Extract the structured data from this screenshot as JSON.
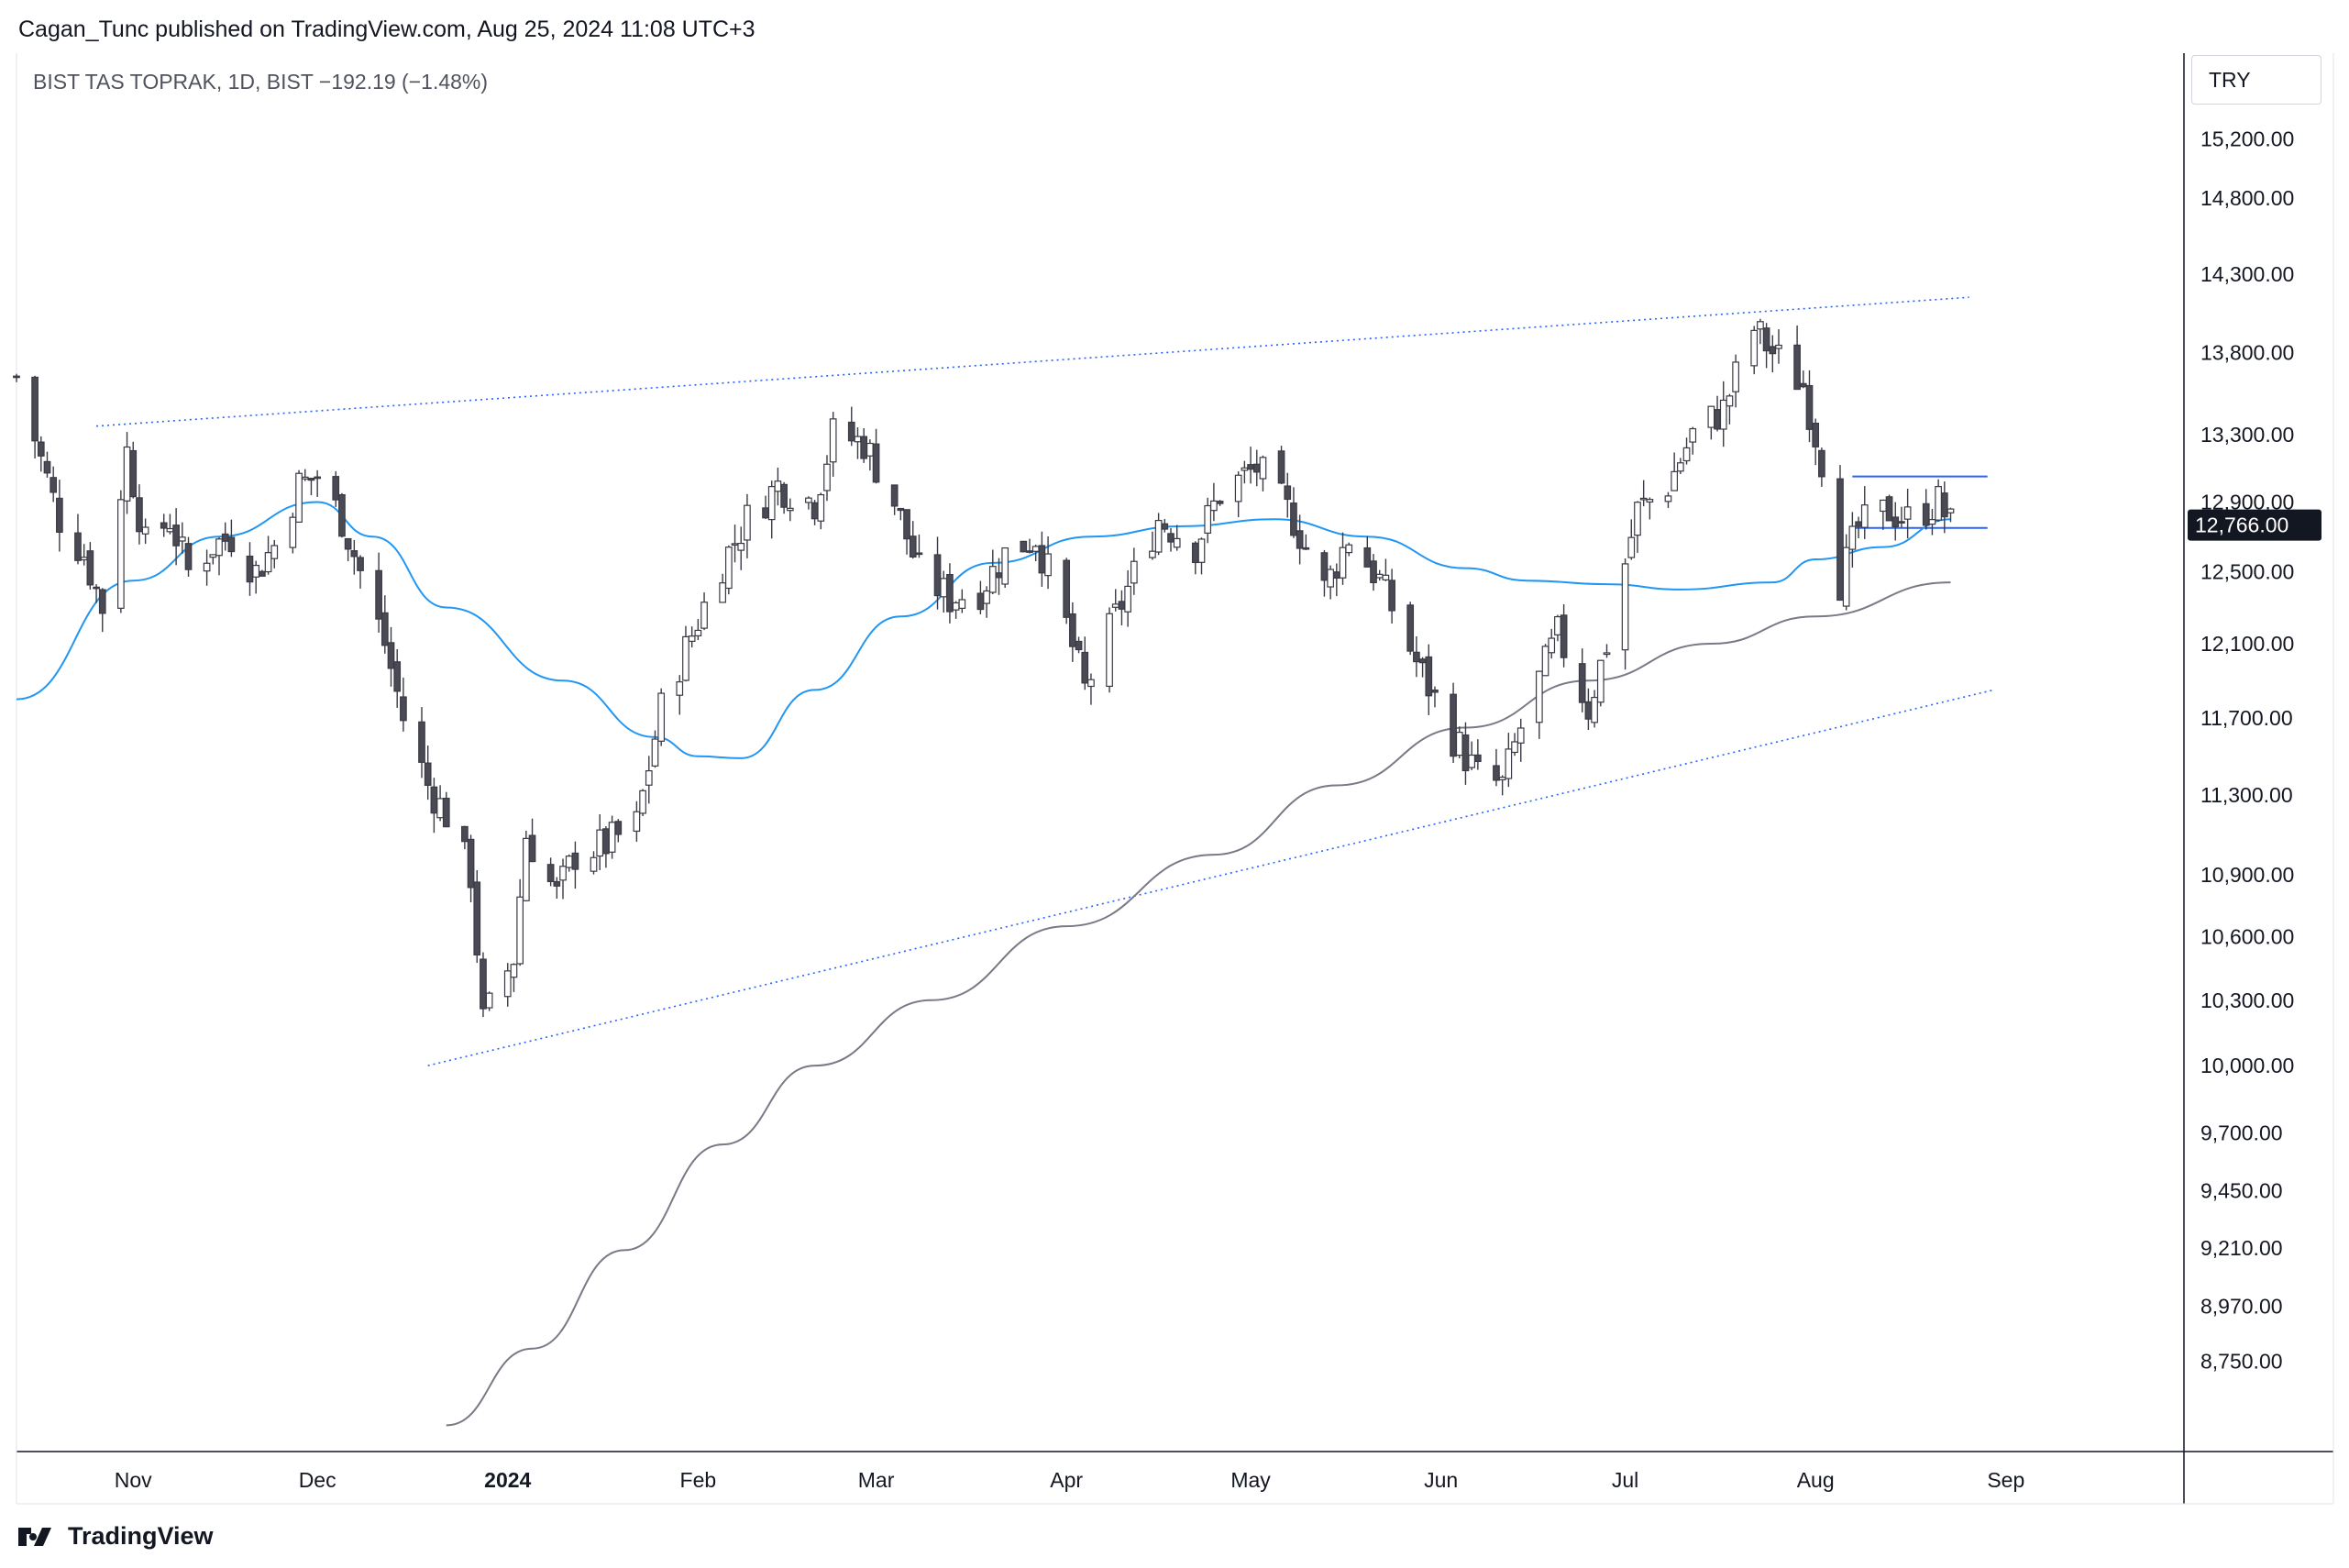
{
  "header": {
    "published_line": "Cagan_Tunc published on TradingView.com, Aug 25, 2024 11:08 UTC+3",
    "symbol_line": "BIST TAS TOPRAK, 1D, BIST  −192.19 (−1.48%)"
  },
  "price_scale": {
    "currency": "TRY",
    "last_price_label": "12,766.00",
    "last_price_color": "#131722"
  },
  "footer": {
    "brand": "TradingView",
    "logo_icon": "tradingview-logo-icon"
  },
  "colors": {
    "up_body": "#ffffff",
    "down_body": "#4a4a55",
    "wick": "#3a3a45",
    "ma_fast": "#2196f3",
    "ma_slow": "#787b86",
    "trendline": "#2962ff",
    "grid_border": "#131722"
  },
  "chart_data": {
    "type": "candlestick",
    "symbol": "BIST TAS TOPRAK",
    "interval": "1D",
    "exchange": "BIST",
    "change": "−192.19 (−1.48%)",
    "last_price": 12766.0,
    "y_scale": "log",
    "ylim": [
      8400,
      15800
    ],
    "y_ticks": [
      15200,
      14800,
      14300,
      13800,
      13300,
      12900,
      12500,
      12100,
      11700,
      11300,
      10900,
      10600,
      10300,
      10000,
      9700,
      9450,
      9210,
      8970,
      8750
    ],
    "y_tick_labels": [
      "15,200.00",
      "14,800.00",
      "14,300.00",
      "13,800.00",
      "13,300.00",
      "12,900.00",
      "12,500.00",
      "12,100.00",
      "11,700.00",
      "11,300.00",
      "10,900.00",
      "10,600.00",
      "10,300.00",
      "10,000.00",
      "9,700.00",
      "9,450.00",
      "9,210.00",
      "8,970.00",
      "8,750.00"
    ],
    "xlim": [
      "2023-10-13",
      "2024-09-30"
    ],
    "x_ticks": [
      {
        "date": "2023-11-01",
        "label": "Nov"
      },
      {
        "date": "2023-12-01",
        "label": "Dec"
      },
      {
        "date": "2024-01-01",
        "label": "2024"
      },
      {
        "date": "2024-02-01",
        "label": "Feb"
      },
      {
        "date": "2024-03-01",
        "label": "Mar"
      },
      {
        "date": "2024-04-01",
        "label": "Apr"
      },
      {
        "date": "2024-05-01",
        "label": "May"
      },
      {
        "date": "2024-06-01",
        "label": "Jun"
      },
      {
        "date": "2024-07-01",
        "label": "Jul"
      },
      {
        "date": "2024-08-01",
        "label": "Aug"
      },
      {
        "date": "2024-09-01",
        "label": "Sep"
      }
    ],
    "close_path": [
      [
        "2023-10-13",
        13650
      ],
      [
        "2023-10-17",
        13150
      ],
      [
        "2023-10-20",
        12800
      ],
      [
        "2023-10-24",
        12600
      ],
      [
        "2023-10-27",
        12300
      ],
      [
        "2023-10-31",
        13200
      ],
      [
        "2023-11-03",
        12650
      ],
      [
        "2023-11-07",
        12800
      ],
      [
        "2023-11-10",
        12500
      ],
      [
        "2023-11-14",
        12650
      ],
      [
        "2023-11-17",
        12700
      ],
      [
        "2023-11-21",
        12500
      ],
      [
        "2023-11-24",
        12650
      ],
      [
        "2023-11-28",
        13000
      ],
      [
        "2023-12-01",
        13050
      ],
      [
        "2023-12-05",
        12800
      ],
      [
        "2023-12-08",
        12500
      ],
      [
        "2023-12-12",
        12100
      ],
      [
        "2023-12-15",
        11700
      ],
      [
        "2023-12-19",
        11350
      ],
      [
        "2023-12-22",
        11200
      ],
      [
        "2023-12-26",
        10900
      ],
      [
        "2023-12-28",
        10200
      ],
      [
        "2024-01-02",
        10500
      ],
      [
        "2024-01-04",
        11100
      ],
      [
        "2024-01-09",
        10800
      ],
      [
        "2024-01-12",
        11000
      ],
      [
        "2024-01-17",
        11050
      ],
      [
        "2024-01-22",
        11150
      ],
      [
        "2024-01-26",
        11750
      ],
      [
        "2024-01-31",
        12150
      ],
      [
        "2024-02-05",
        12550
      ],
      [
        "2024-02-09",
        12800
      ],
      [
        "2024-02-14",
        13000
      ],
      [
        "2024-02-20",
        12900
      ],
      [
        "2024-02-23",
        13300
      ],
      [
        "2024-02-28",
        13250
      ],
      [
        "2024-03-04",
        12900
      ],
      [
        "2024-03-08",
        12500
      ],
      [
        "2024-03-13",
        12350
      ],
      [
        "2024-03-18",
        12400
      ],
      [
        "2024-03-22",
        12600
      ],
      [
        "2024-03-27",
        12700
      ],
      [
        "2024-04-01",
        12200
      ],
      [
        "2024-04-04",
        11850
      ],
      [
        "2024-04-16",
        12800
      ],
      [
        "2024-04-22",
        12650
      ],
      [
        "2024-04-26",
        12950
      ],
      [
        "2024-05-02",
        13100
      ],
      [
        "2024-05-08",
        12800
      ],
      [
        "2024-05-13",
        12400
      ],
      [
        "2024-05-17",
        12700
      ],
      [
        "2024-05-22",
        12450
      ],
      [
        "2024-05-28",
        12000
      ],
      [
        "2024-06-03",
        11600
      ],
      [
        "2024-06-07",
        11400
      ],
      [
        "2024-06-11",
        11350
      ],
      [
        "2024-06-14",
        11650
      ],
      [
        "2024-06-20",
        12150
      ],
      [
        "2024-06-25",
        11750
      ],
      [
        "2024-06-28",
        12100
      ],
      [
        "2024-07-03",
        12850
      ],
      [
        "2024-07-08",
        13000
      ],
      [
        "2024-07-12",
        13300
      ],
      [
        "2024-07-17",
        13450
      ],
      [
        "2024-07-22",
        13950
      ],
      [
        "2024-07-25",
        13800
      ],
      [
        "2024-07-30",
        13600
      ],
      [
        "2024-08-02",
        13150
      ],
      [
        "2024-08-05",
        12450
      ],
      [
        "2024-08-08",
        12750
      ],
      [
        "2024-08-13",
        12850
      ],
      [
        "2024-08-16",
        12800
      ],
      [
        "2024-08-21",
        12900
      ],
      [
        "2024-08-23",
        12766
      ]
    ],
    "series": [
      {
        "name": "",
        "type": "moving-average",
        "color": "#2196f3",
        "points": [
          [
            "2023-10-13",
            11800
          ],
          [
            "2023-11-01",
            12450
          ],
          [
            "2023-11-15",
            12700
          ],
          [
            "2023-12-01",
            12900
          ],
          [
            "2023-12-10",
            12700
          ],
          [
            "2023-12-22",
            12300
          ],
          [
            "2024-01-10",
            11900
          ],
          [
            "2024-01-25",
            11600
          ],
          [
            "2024-02-01",
            11500
          ],
          [
            "2024-02-08",
            11490
          ],
          [
            "2024-02-20",
            11850
          ],
          [
            "2024-03-05",
            12250
          ],
          [
            "2024-03-20",
            12550
          ],
          [
            "2024-04-05",
            12700
          ],
          [
            "2024-04-20",
            12760
          ],
          [
            "2024-05-05",
            12800
          ],
          [
            "2024-05-20",
            12700
          ],
          [
            "2024-06-05",
            12520
          ],
          [
            "2024-06-15",
            12450
          ],
          [
            "2024-06-28",
            12430
          ],
          [
            "2024-07-10",
            12400
          ],
          [
            "2024-07-25",
            12440
          ],
          [
            "2024-08-01",
            12570
          ],
          [
            "2024-08-12",
            12640
          ],
          [
            "2024-08-23",
            12800
          ]
        ]
      },
      {
        "name": "",
        "type": "moving-average",
        "color": "#787b86",
        "points": [
          [
            "2023-12-22",
            8500
          ],
          [
            "2024-01-05",
            8800
          ],
          [
            "2024-01-20",
            9200
          ],
          [
            "2024-02-05",
            9650
          ],
          [
            "2024-02-20",
            10000
          ],
          [
            "2024-03-10",
            10300
          ],
          [
            "2024-04-01",
            10650
          ],
          [
            "2024-04-25",
            11000
          ],
          [
            "2024-05-15",
            11350
          ],
          [
            "2024-06-05",
            11650
          ],
          [
            "2024-06-25",
            11900
          ],
          [
            "2024-07-15",
            12100
          ],
          [
            "2024-08-01",
            12250
          ],
          [
            "2024-08-23",
            12440
          ]
        ]
      }
    ],
    "annotations": [
      {
        "type": "dotted-trendline",
        "from": [
          "2023-10-26",
          13350
        ],
        "to": [
          "2024-08-26",
          14150
        ]
      },
      {
        "type": "dotted-trendline",
        "from": [
          "2023-12-19",
          10000
        ],
        "to": [
          "2024-08-30",
          11850
        ]
      },
      {
        "type": "horizontal-segment",
        "from": [
          "2024-08-07",
          13050
        ],
        "to": [
          "2024-08-29",
          13050
        ]
      },
      {
        "type": "horizontal-segment",
        "from": [
          "2024-08-07",
          12750
        ],
        "to": [
          "2024-08-29",
          12750
        ]
      }
    ]
  }
}
